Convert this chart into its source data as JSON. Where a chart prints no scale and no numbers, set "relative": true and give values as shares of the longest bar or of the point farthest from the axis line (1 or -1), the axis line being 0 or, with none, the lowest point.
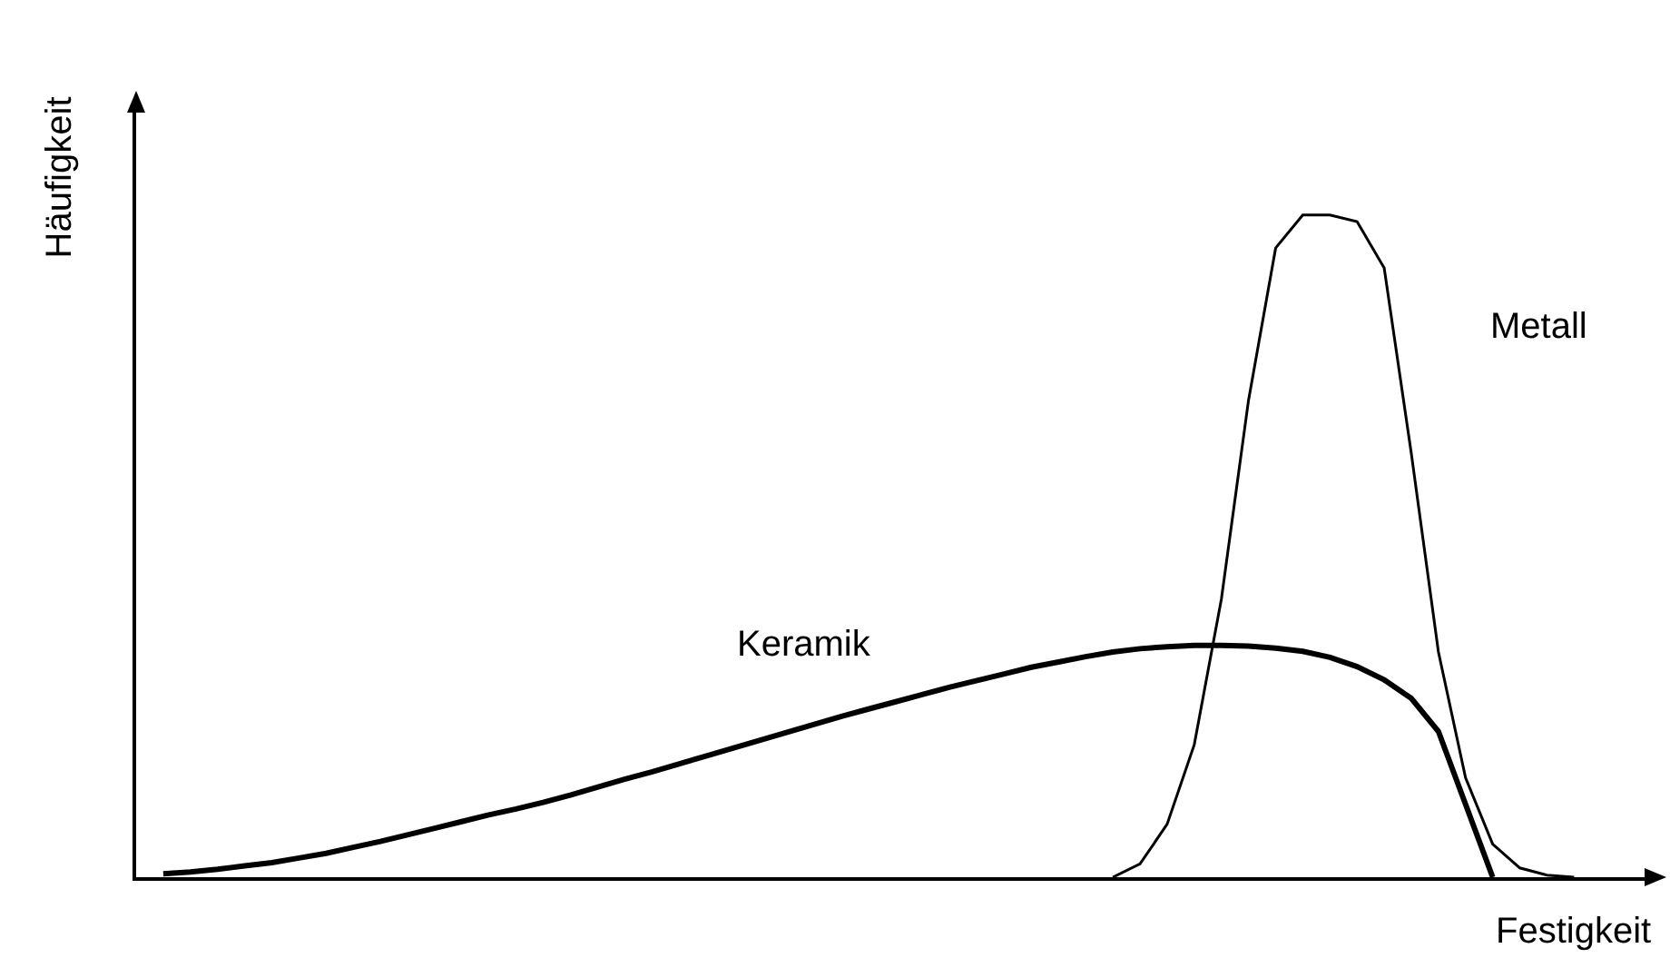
{
  "chart_data": {
    "type": "line",
    "relative": true,
    "xlabel": "Festigkeit",
    "ylabel": "Häufigkeit",
    "grid": false,
    "legend": false,
    "marker": "none",
    "line_style": "solid",
    "categories": [
      null,
      null,
      null,
      null,
      null,
      null,
      null,
      null,
      null,
      null,
      null,
      null,
      null,
      null,
      null,
      null,
      null,
      null,
      null,
      null,
      null,
      null,
      null,
      null,
      null,
      null,
      null,
      null,
      null,
      null,
      null,
      null,
      null,
      null,
      null,
      null,
      null,
      null,
      null,
      null,
      null,
      null,
      null,
      null,
      null,
      null,
      null,
      null,
      null,
      null,
      null,
      null,
      null,
      null,
      null
    ],
    "series": [
      {
        "name": "Keramik",
        "color": "#000000",
        "values": [
          0.005,
          0.008,
          0.012,
          0.017,
          0.022,
          0.029,
          0.036,
          0.045,
          0.054,
          0.064,
          0.074,
          0.084,
          0.094,
          0.103,
          0.113,
          0.124,
          0.136,
          0.148,
          0.159,
          0.171,
          0.183,
          0.195,
          0.207,
          0.219,
          0.231,
          0.243,
          0.254,
          0.265,
          0.276,
          0.287,
          0.297,
          0.307,
          0.317,
          0.325,
          0.333,
          0.34,
          0.345,
          0.348,
          0.35,
          0.35,
          0.349,
          0.346,
          0.341,
          0.332,
          0.318,
          0.298,
          0.27,
          0.22,
          0.11,
          0,
          null,
          null,
          null,
          null,
          null
        ]
      },
      {
        "name": "Metall",
        "color": "#000000",
        "values": [
          null,
          null,
          null,
          null,
          null,
          null,
          null,
          null,
          null,
          null,
          null,
          null,
          null,
          null,
          null,
          null,
          null,
          null,
          null,
          null,
          null,
          null,
          null,
          null,
          null,
          null,
          null,
          null,
          null,
          null,
          null,
          null,
          null,
          null,
          null,
          0,
          0.02,
          0.08,
          0.2,
          0.42,
          0.72,
          0.95,
          1,
          1,
          0.99,
          0.92,
          0.64,
          0.34,
          0.15,
          0.05,
          0.014,
          0.003,
          0,
          null,
          null
        ]
      }
    ]
  }
}
